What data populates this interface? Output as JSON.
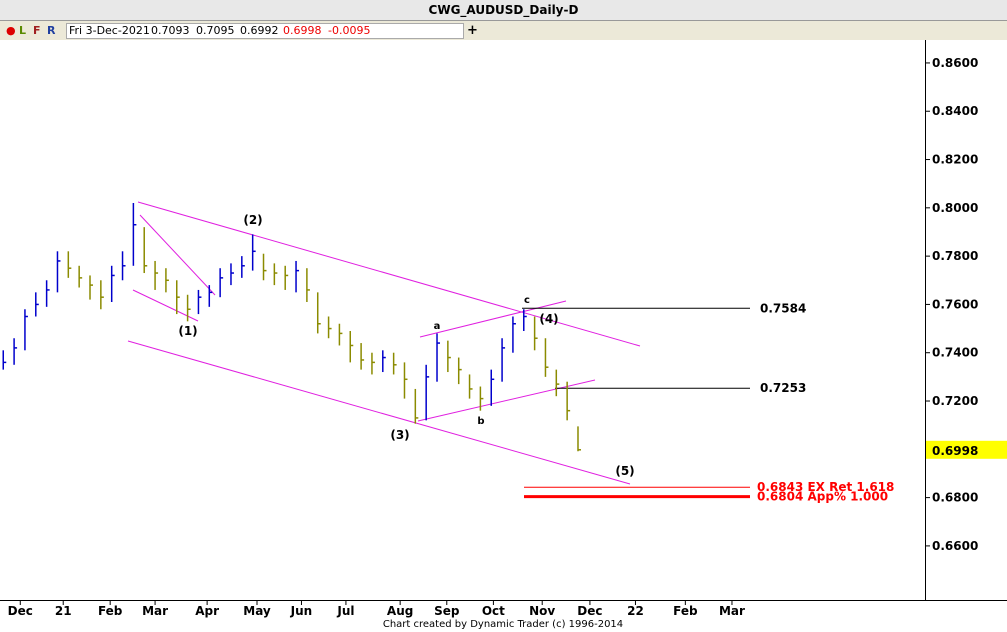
{
  "window_title": "CWG_AUDUSD_Daily-D",
  "toolbar": {
    "letters": [
      "L",
      "F",
      "R"
    ],
    "date": "Fri 3-Dec-2021",
    "open": 0.7093,
    "high": 0.7095,
    "low": 0.6992,
    "close": 0.6998,
    "change": -0.0095
  },
  "footer": "Chart created by Dynamic Trader  (c) 1996-2014",
  "chart_data": {
    "type": "hlc",
    "close": [
      0.736,
      0.742,
      0.755,
      0.76,
      0.766,
      0.778,
      0.775,
      0.771,
      0.768,
      0.763,
      0.772,
      0.776,
      0.793,
      0.776,
      0.773,
      0.77,
      0.763,
      0.758,
      0.763,
      0.765,
      0.771,
      0.773,
      0.776,
      0.782,
      0.774,
      0.773,
      0.772,
      0.774,
      0.766,
      0.752,
      0.75,
      0.748,
      0.743,
      0.737,
      0.736,
      0.738,
      0.735,
      0.729,
      0.713,
      0.73,
      0.744,
      0.738,
      0.733,
      0.725,
      0.721,
      0.729,
      0.742,
      0.752,
      0.755,
      0.746,
      0.734,
      0.727,
      0.716,
      0.6998
    ],
    "high": [
      0.741,
      0.746,
      0.758,
      0.765,
      0.77,
      0.782,
      0.782,
      0.776,
      0.772,
      0.77,
      0.776,
      0.782,
      0.802,
      0.792,
      0.778,
      0.775,
      0.77,
      0.764,
      0.766,
      0.768,
      0.775,
      0.777,
      0.78,
      0.789,
      0.781,
      0.777,
      0.776,
      0.778,
      0.775,
      0.765,
      0.755,
      0.752,
      0.749,
      0.744,
      0.74,
      0.741,
      0.74,
      0.736,
      0.725,
      0.735,
      0.748,
      0.745,
      0.738,
      0.731,
      0.726,
      0.733,
      0.746,
      0.755,
      0.758,
      0.755,
      0.746,
      0.733,
      0.728,
      0.7095
    ],
    "low": [
      0.733,
      0.735,
      0.741,
      0.755,
      0.759,
      0.765,
      0.771,
      0.767,
      0.762,
      0.758,
      0.761,
      0.77,
      0.776,
      0.773,
      0.766,
      0.765,
      0.756,
      0.753,
      0.756,
      0.759,
      0.763,
      0.768,
      0.771,
      0.774,
      0.77,
      0.768,
      0.766,
      0.765,
      0.761,
      0.748,
      0.746,
      0.743,
      0.736,
      0.733,
      0.731,
      0.732,
      0.731,
      0.721,
      0.7106,
      0.712,
      0.728,
      0.732,
      0.727,
      0.721,
      0.716,
      0.718,
      0.728,
      0.74,
      0.749,
      0.741,
      0.73,
      0.722,
      0.712,
      0.6992
    ],
    "up_color": "#0000cc",
    "down_color": "#8b8b00",
    "xlim": [
      -0.3,
      85
    ],
    "xticks": [
      {
        "value": 1.57,
        "label": "Dec"
      },
      {
        "value": 5.53,
        "label": "21"
      },
      {
        "value": 9.86,
        "label": "Feb"
      },
      {
        "value": 14.0,
        "label": "Mar"
      },
      {
        "value": 18.8,
        "label": "Apr"
      },
      {
        "value": 23.4,
        "label": "May"
      },
      {
        "value": 27.5,
        "label": "Jun"
      },
      {
        "value": 31.6,
        "label": "Jul"
      },
      {
        "value": 36.6,
        "label": "Aug"
      },
      {
        "value": 40.9,
        "label": "Sep"
      },
      {
        "value": 45.2,
        "label": "Oct"
      },
      {
        "value": 49.7,
        "label": "Nov"
      },
      {
        "value": 54.1,
        "label": "Dec"
      },
      {
        "value": 58.3,
        "label": "22"
      },
      {
        "value": 62.9,
        "label": "Feb"
      },
      {
        "value": 67.2,
        "label": "Mar"
      }
    ],
    "ylim": [
      0.6376,
      0.8695
    ],
    "yticks": [
      {
        "value": 0.66,
        "label": "0.6600"
      },
      {
        "value": 0.68,
        "label": "0.6800"
      },
      {
        "value": 0.7,
        "label": "0.7000"
      },
      {
        "value": 0.72,
        "label": "0.7200"
      },
      {
        "value": 0.74,
        "label": "0.7400"
      },
      {
        "value": 0.76,
        "label": "0.7600"
      },
      {
        "value": 0.78,
        "label": "0.7800"
      },
      {
        "value": 0.8,
        "label": "0.8000"
      },
      {
        "value": 0.82,
        "label": "0.8200"
      },
      {
        "value": 0.84,
        "label": "0.8400"
      },
      {
        "value": 0.86,
        "label": "0.8600"
      }
    ],
    "levels": [
      {
        "value": 0.7584,
        "label": "0.7584",
        "color": "#000000"
      },
      {
        "value": 0.7253,
        "label": "0.7253",
        "color": "#000000"
      },
      {
        "value": 0.6843,
        "label": "0.6843 EX Ret 1.618",
        "color": "#ff0000"
      },
      {
        "value": 0.6804,
        "label": "0.6804 App% 1.000",
        "color": "#ff0000"
      }
    ],
    "last_price": 0.6998,
    "wave_labels": [
      "(1)",
      "(2)",
      "(3)",
      "(4)",
      "(5)",
      "a",
      "b",
      "c"
    ]
  }
}
